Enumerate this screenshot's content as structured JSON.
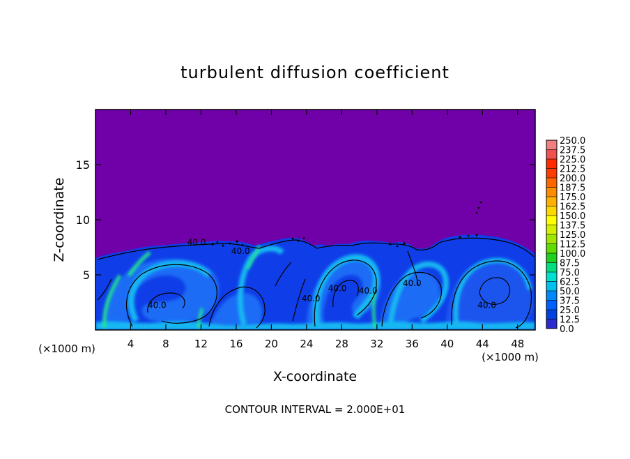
{
  "chart_data": {
    "type": "heatmap",
    "title": "turbulent diffusion coefficient",
    "xlabel": "X-coordinate",
    "ylabel": "Z-coordinate",
    "x_unit": "(×1000 m)",
    "z_unit": "(×1000 m)",
    "xlim": [
      0,
      50
    ],
    "ylim": [
      0,
      20
    ],
    "x_ticks": [
      4,
      8,
      12,
      16,
      20,
      24,
      28,
      32,
      36,
      40,
      44,
      48
    ],
    "y_ticks": [
      5,
      10,
      15
    ],
    "footer": "CONTOUR INTERVAL = 2.000E+01",
    "contour_labels": [
      {
        "text": "40.0",
        "x": 11.5,
        "z": 7.7
      },
      {
        "text": "40.0",
        "x": 16.5,
        "z": 6.9
      },
      {
        "text": "40.0",
        "x": 7.0,
        "z": 2.0
      },
      {
        "text": "40.0",
        "x": 24.5,
        "z": 2.6
      },
      {
        "text": "40.0",
        "x": 27.5,
        "z": 3.5
      },
      {
        "text": "40.0",
        "x": 31.0,
        "z": 3.3
      },
      {
        "text": "40.0",
        "x": 36.0,
        "z": 4.0
      },
      {
        "text": "40.0",
        "x": 44.5,
        "z": 2.0
      }
    ],
    "legend": {
      "levels": [
        "250.0",
        "237.5",
        "225.0",
        "212.5",
        "200.0",
        "187.5",
        "175.0",
        "162.5",
        "150.0",
        "137.5",
        "125.0",
        "112.5",
        "100.0",
        "87.5",
        "75.0",
        "62.5",
        "50.0",
        "37.5",
        "25.0",
        "12.5",
        "0.0"
      ],
      "colors": [
        "#f08080",
        "#f05050",
        "#ff2a00",
        "#ff3c00",
        "#ff6600",
        "#ff8c00",
        "#ffb000",
        "#ffd700",
        "#ffff00",
        "#d4f000",
        "#a0e600",
        "#60dd00",
        "#20d020",
        "#00e080",
        "#00e0d0",
        "#00c0f0",
        "#0088ff",
        "#0060ff",
        "#0040e0",
        "#2a2ad0",
        "#7000a8"
      ]
    },
    "field_description": "background #7000a8 above z≈7.5; blue turbulent boundary layer 0–7.5 km with cyan/green filaments and dark contour lines"
  }
}
